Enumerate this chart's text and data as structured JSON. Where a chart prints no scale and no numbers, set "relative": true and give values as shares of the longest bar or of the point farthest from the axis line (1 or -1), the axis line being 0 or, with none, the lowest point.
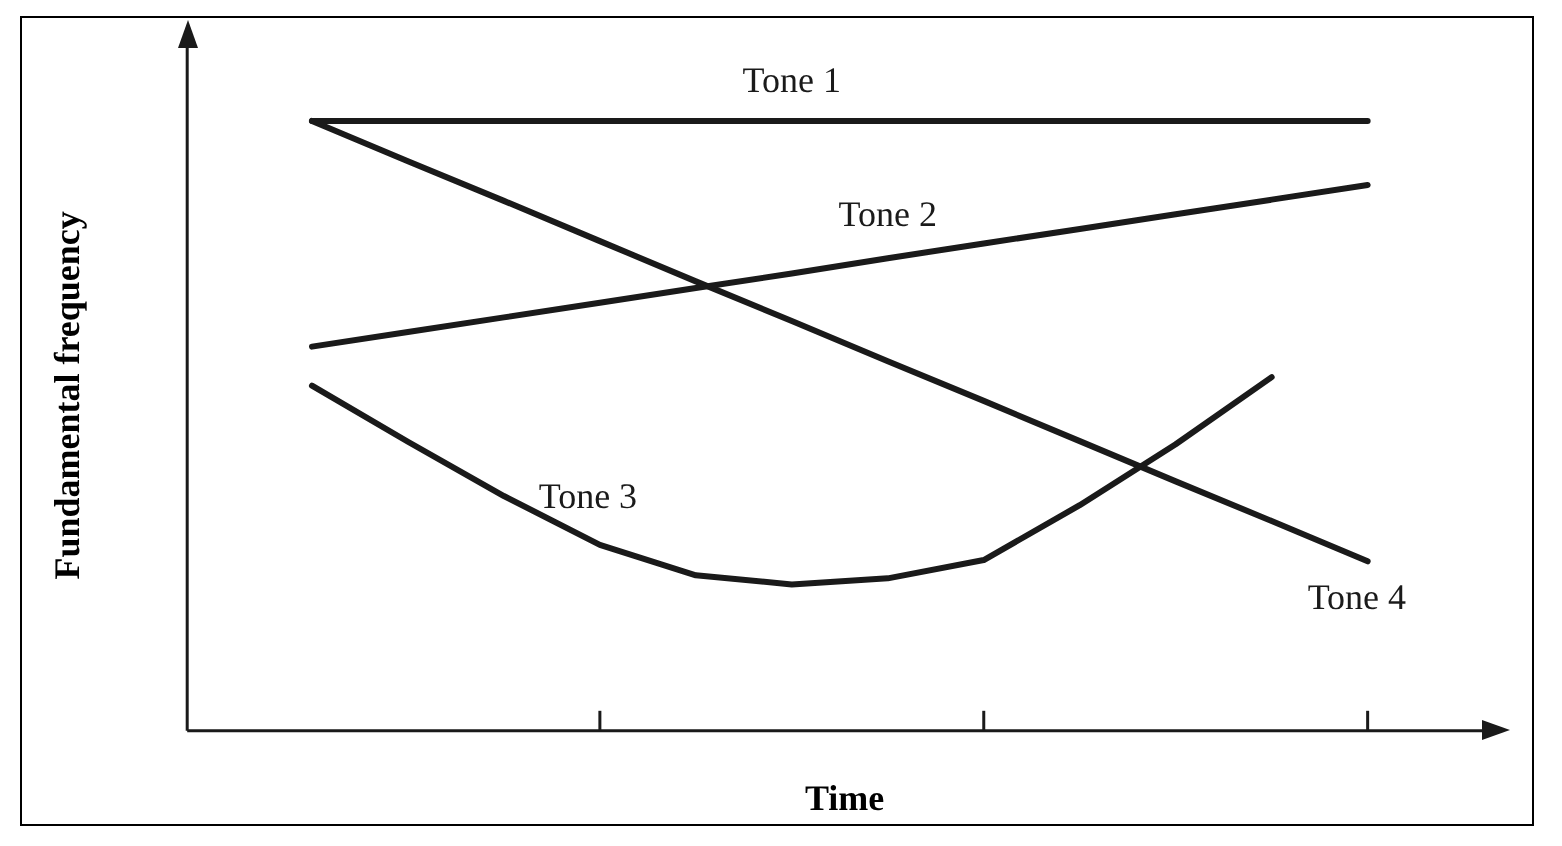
{
  "chart_data": {
    "type": "line",
    "relative": true,
    "xlabel": "Time",
    "ylabel": "Fundamental frequency",
    "grid": false,
    "legend": false,
    "marker": "none",
    "line_style": "solid",
    "categories": [
      null,
      null,
      null,
      null,
      null,
      null,
      null,
      null,
      null,
      null,
      null,
      null
    ],
    "series": [
      {
        "name": "Tone 1",
        "color": "#1a1a1a",
        "values": [
          1,
          1,
          1,
          1,
          1,
          1,
          1,
          1,
          1,
          1,
          1,
          1
        ]
      },
      {
        "name": "Tone 2",
        "color": "#1a1a1a",
        "values": [
          0.63,
          0.654,
          0.678,
          0.702,
          0.726,
          0.75,
          0.775,
          0.799,
          0.823,
          0.847,
          0.871,
          0.895
        ]
      },
      {
        "name": "Tone 3",
        "color": "#1a1a1a",
        "values": [
          0.566,
          0.474,
          0.385,
          0.305,
          0.255,
          0.24,
          0.25,
          0.28,
          0.37,
          0.47,
          0.58,
          null
        ]
      },
      {
        "name": "Tone 4",
        "color": "#1a1a1a",
        "values": [
          1,
          0.934,
          0.869,
          0.803,
          0.737,
          0.672,
          0.606,
          0.541,
          0.475,
          0.409,
          0.344,
          0.278
        ]
      }
    ]
  }
}
